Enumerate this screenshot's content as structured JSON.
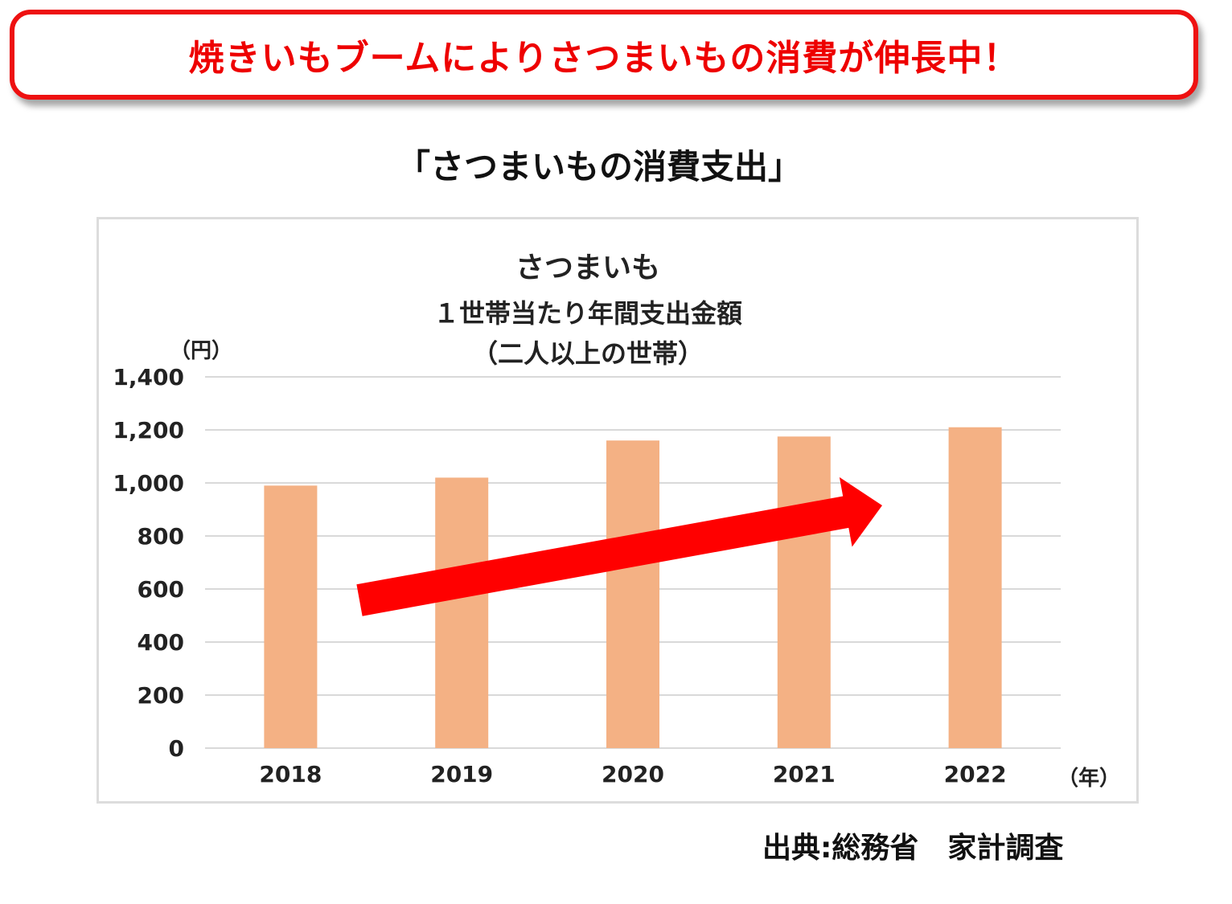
{
  "banner": {
    "text": "焼きいもブームによりさつまいもの消費が伸長中！"
  },
  "subtitle": "「さつまいもの消費支出」",
  "colors": {
    "banner_border": "#ee1111",
    "banner_text": "#ee0000",
    "bar_fill": "#f4b184",
    "arrow": "#ff0000",
    "gridline": "#d9d9d9"
  },
  "chart_data": {
    "type": "bar",
    "title_lines": [
      "さつまいも",
      "１世帯当たり年間支出金額",
      "（二人以上の世帯）"
    ],
    "ylabel": "（円）",
    "xlabel": "（年）",
    "categories": [
      "2018",
      "2019",
      "2020",
      "2021",
      "2022"
    ],
    "values": [
      990,
      1020,
      1160,
      1175,
      1210
    ],
    "ylim": [
      0,
      1400
    ],
    "yticks": [
      0,
      200,
      400,
      600,
      800,
      1000,
      1200,
      1400
    ],
    "ytick_labels": [
      "0",
      "200",
      "400",
      "600",
      "800",
      "1,000",
      "1,200",
      "1,400"
    ],
    "grid": true,
    "legend": "none",
    "annotations": [
      "red upward trend arrow"
    ]
  },
  "source": "出典:総務省　家計調査"
}
